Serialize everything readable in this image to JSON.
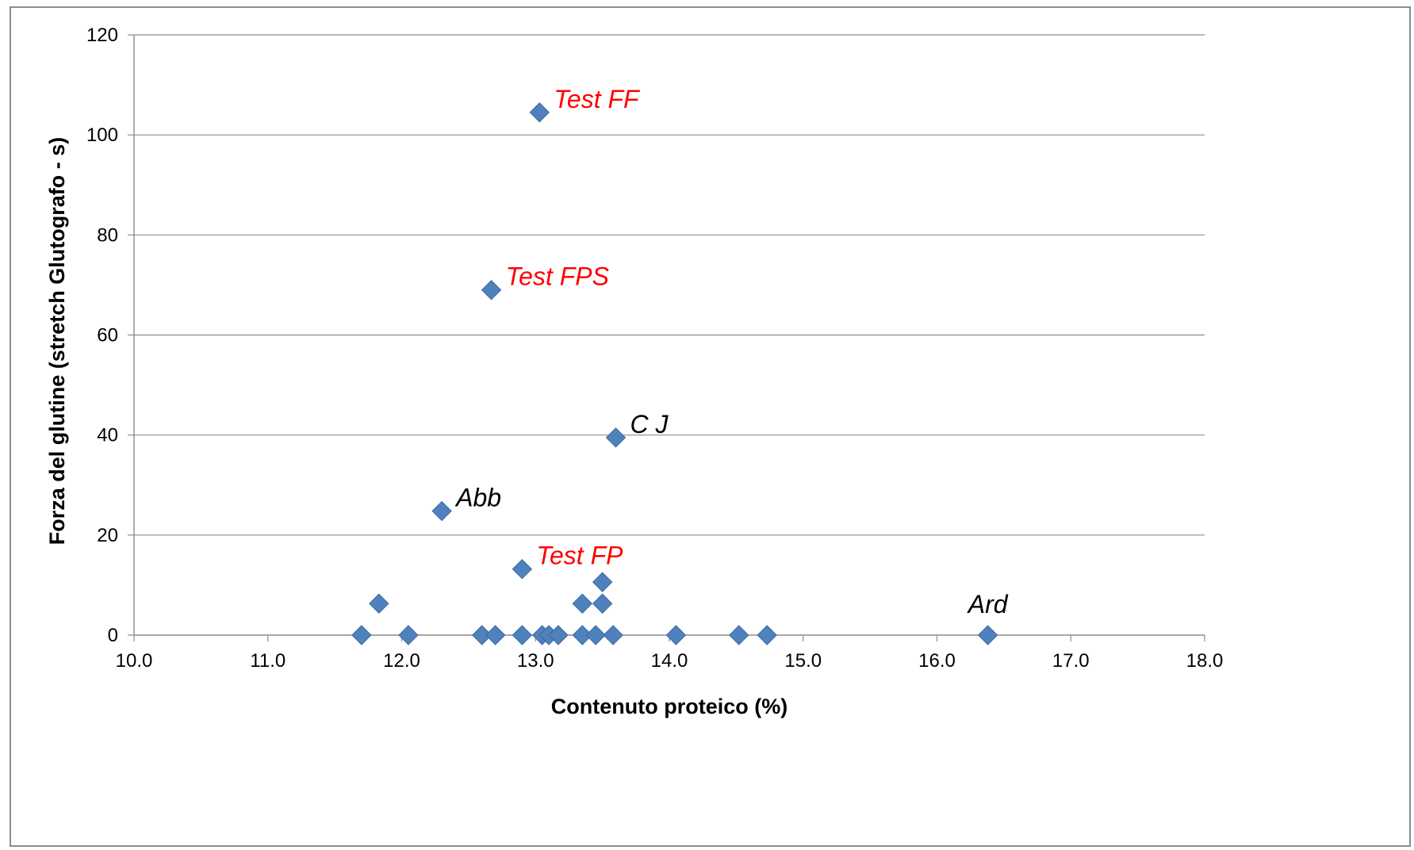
{
  "chart_data": {
    "type": "scatter",
    "title": "",
    "xlabel": "Contenuto proteico (%)",
    "ylabel": "Forza del glutine (stretch Glutografo - s)",
    "xlim": [
      10.0,
      18.0
    ],
    "ylim": [
      0,
      120
    ],
    "x_ticks": [
      "10.0",
      "11.0",
      "12.0",
      "13.0",
      "14.0",
      "15.0",
      "16.0",
      "17.0",
      "18.0"
    ],
    "y_ticks": [
      "0",
      "20",
      "40",
      "60",
      "80",
      "100",
      "120"
    ],
    "grid": "horizontal",
    "marker": "diamond",
    "series_color": "#4f81bd",
    "series": [
      {
        "points": [
          {
            "x": 13.03,
            "y": 104.5,
            "label": "Test FF",
            "label_color": "#ff0000"
          },
          {
            "x": 12.67,
            "y": 69.0,
            "label": "Test FPS",
            "label_color": "#ff0000"
          },
          {
            "x": 13.6,
            "y": 39.5,
            "label": "C J",
            "label_color": "#000000"
          },
          {
            "x": 12.3,
            "y": 24.8,
            "label": "Abb",
            "label_color": "#000000"
          },
          {
            "x": 12.9,
            "y": 13.2,
            "label": "Test FP",
            "label_color": "#ff0000"
          },
          {
            "x": 13.5,
            "y": 10.6
          },
          {
            "x": 11.83,
            "y": 6.3
          },
          {
            "x": 13.35,
            "y": 6.3
          },
          {
            "x": 13.5,
            "y": 6.3
          },
          {
            "x": 11.7,
            "y": 0
          },
          {
            "x": 12.05,
            "y": 0
          },
          {
            "x": 12.6,
            "y": 0
          },
          {
            "x": 12.7,
            "y": 0
          },
          {
            "x": 12.9,
            "y": 0
          },
          {
            "x": 13.05,
            "y": 0
          },
          {
            "x": 13.1,
            "y": 0
          },
          {
            "x": 13.17,
            "y": 0
          },
          {
            "x": 13.35,
            "y": 0
          },
          {
            "x": 13.45,
            "y": 0
          },
          {
            "x": 13.58,
            "y": 0
          },
          {
            "x": 14.05,
            "y": 0
          },
          {
            "x": 14.52,
            "y": 0
          },
          {
            "x": 14.73,
            "y": 0
          },
          {
            "x": 16.38,
            "y": 0,
            "label": "Ard",
            "label_color": "#000000"
          }
        ]
      }
    ]
  }
}
